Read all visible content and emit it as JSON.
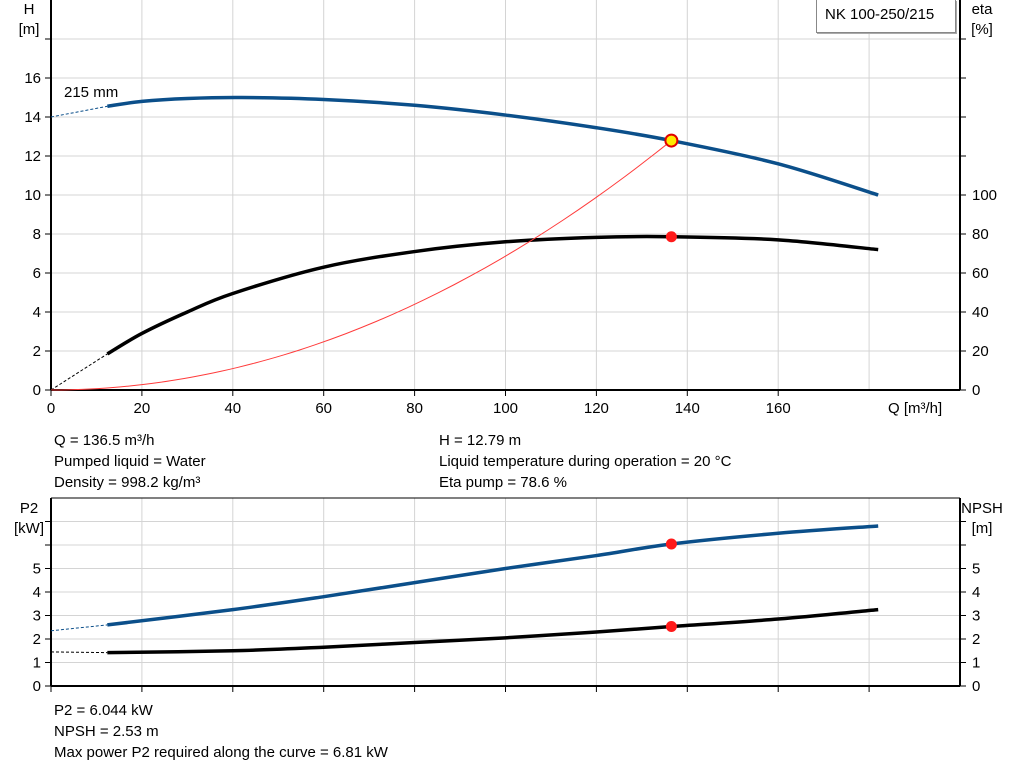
{
  "chart_data": [
    {
      "type": "line",
      "title": "NK 100-250/215",
      "xlabel": "Q [m³/h]",
      "ylabel": [
        "H",
        "[m]"
      ],
      "y2label": [
        "eta",
        "[%]"
      ],
      "xlim": [
        0,
        200
      ],
      "ylim": [
        0,
        20
      ],
      "y2lim": [
        0,
        200
      ],
      "xticks": [
        0,
        20,
        40,
        60,
        80,
        100,
        120,
        140,
        160
      ],
      "yticks": [
        0,
        2,
        4,
        6,
        8,
        10,
        12,
        14,
        16
      ],
      "y2ticks": [
        0,
        20,
        40,
        60,
        80,
        100
      ],
      "grid": true,
      "impeller_label": "215 mm",
      "series": [
        {
          "key": "H",
          "color": "#0b4f8a",
          "axis": "left",
          "x": [
            12.4,
            20,
            30,
            42,
            60,
            80,
            100,
            120,
            136.5,
            160,
            182
          ],
          "y": [
            14.55,
            14.8,
            14.95,
            15.0,
            14.9,
            14.6,
            14.1,
            13.45,
            12.79,
            11.6,
            10.0
          ],
          "extrapolation": {
            "x": [
              0,
              12.4
            ],
            "y": [
              14.0,
              14.55
            ]
          }
        },
        {
          "key": "eta",
          "color": "#000000",
          "axis": "right",
          "x": [
            12.4,
            20,
            30,
            40,
            60,
            80,
            100,
            120,
            136.5,
            160,
            182
          ],
          "y": [
            18.5,
            29,
            40,
            49.5,
            63,
            71,
            76,
            78.3,
            78.6,
            77,
            72
          ],
          "extrapolation": {
            "x": [
              0,
              12.4
            ],
            "y": [
              0,
              18.5
            ]
          }
        },
        {
          "key": "system",
          "color": "#ff3b3b",
          "axis": "left",
          "type": "quadratic",
          "x_end": 136.5,
          "y_end": 12.79
        }
      ],
      "duty_point": {
        "Q": 136.5,
        "H": 12.79,
        "eta": 78.6
      }
    },
    {
      "type": "line",
      "ylabel": [
        "P2",
        "[kW]"
      ],
      "y2label": [
        "NPSH",
        "[m]"
      ],
      "xlim": [
        0,
        200
      ],
      "ylim": [
        0,
        8
      ],
      "yticks": [
        0,
        1,
        2,
        3,
        4,
        5
      ],
      "y2ticks": [
        0,
        1,
        2,
        3,
        4,
        5
      ],
      "grid": true,
      "series": [
        {
          "key": "P2",
          "color": "#0b4f8a",
          "x": [
            12.4,
            40,
            60,
            80,
            100,
            120,
            136.5,
            160,
            182
          ],
          "y": [
            2.6,
            3.25,
            3.8,
            4.4,
            5.0,
            5.55,
            6.044,
            6.5,
            6.81
          ],
          "extrapolation": {
            "x": [
              0,
              12.4
            ],
            "y": [
              2.35,
              2.6
            ]
          }
        },
        {
          "key": "NPSH",
          "color": "#000000",
          "x": [
            12.4,
            40,
            60,
            80,
            100,
            120,
            136.5,
            160,
            182
          ],
          "y": [
            1.42,
            1.5,
            1.65,
            1.85,
            2.05,
            2.3,
            2.53,
            2.85,
            3.25
          ],
          "extrapolation": {
            "x": [
              0,
              12.4
            ],
            "y": [
              1.45,
              1.42
            ]
          }
        }
      ],
      "duty_point": {
        "Q": 136.5,
        "P2": 6.044,
        "NPSH": 2.53
      }
    }
  ],
  "info_top": {
    "left": [
      "Q = 136.5 m³/h",
      "Pumped liquid = Water",
      "Density = 998.2 kg/m³"
    ],
    "right": [
      "H = 12.79 m",
      "Liquid temperature during operation = 20 °C",
      "Eta pump = 78.6 %"
    ]
  },
  "info_bottom": [
    "P2 = 6.044 kW",
    "NPSH = 2.53 m",
    "Max power P2 required along the curve = 6.81 kW"
  ]
}
